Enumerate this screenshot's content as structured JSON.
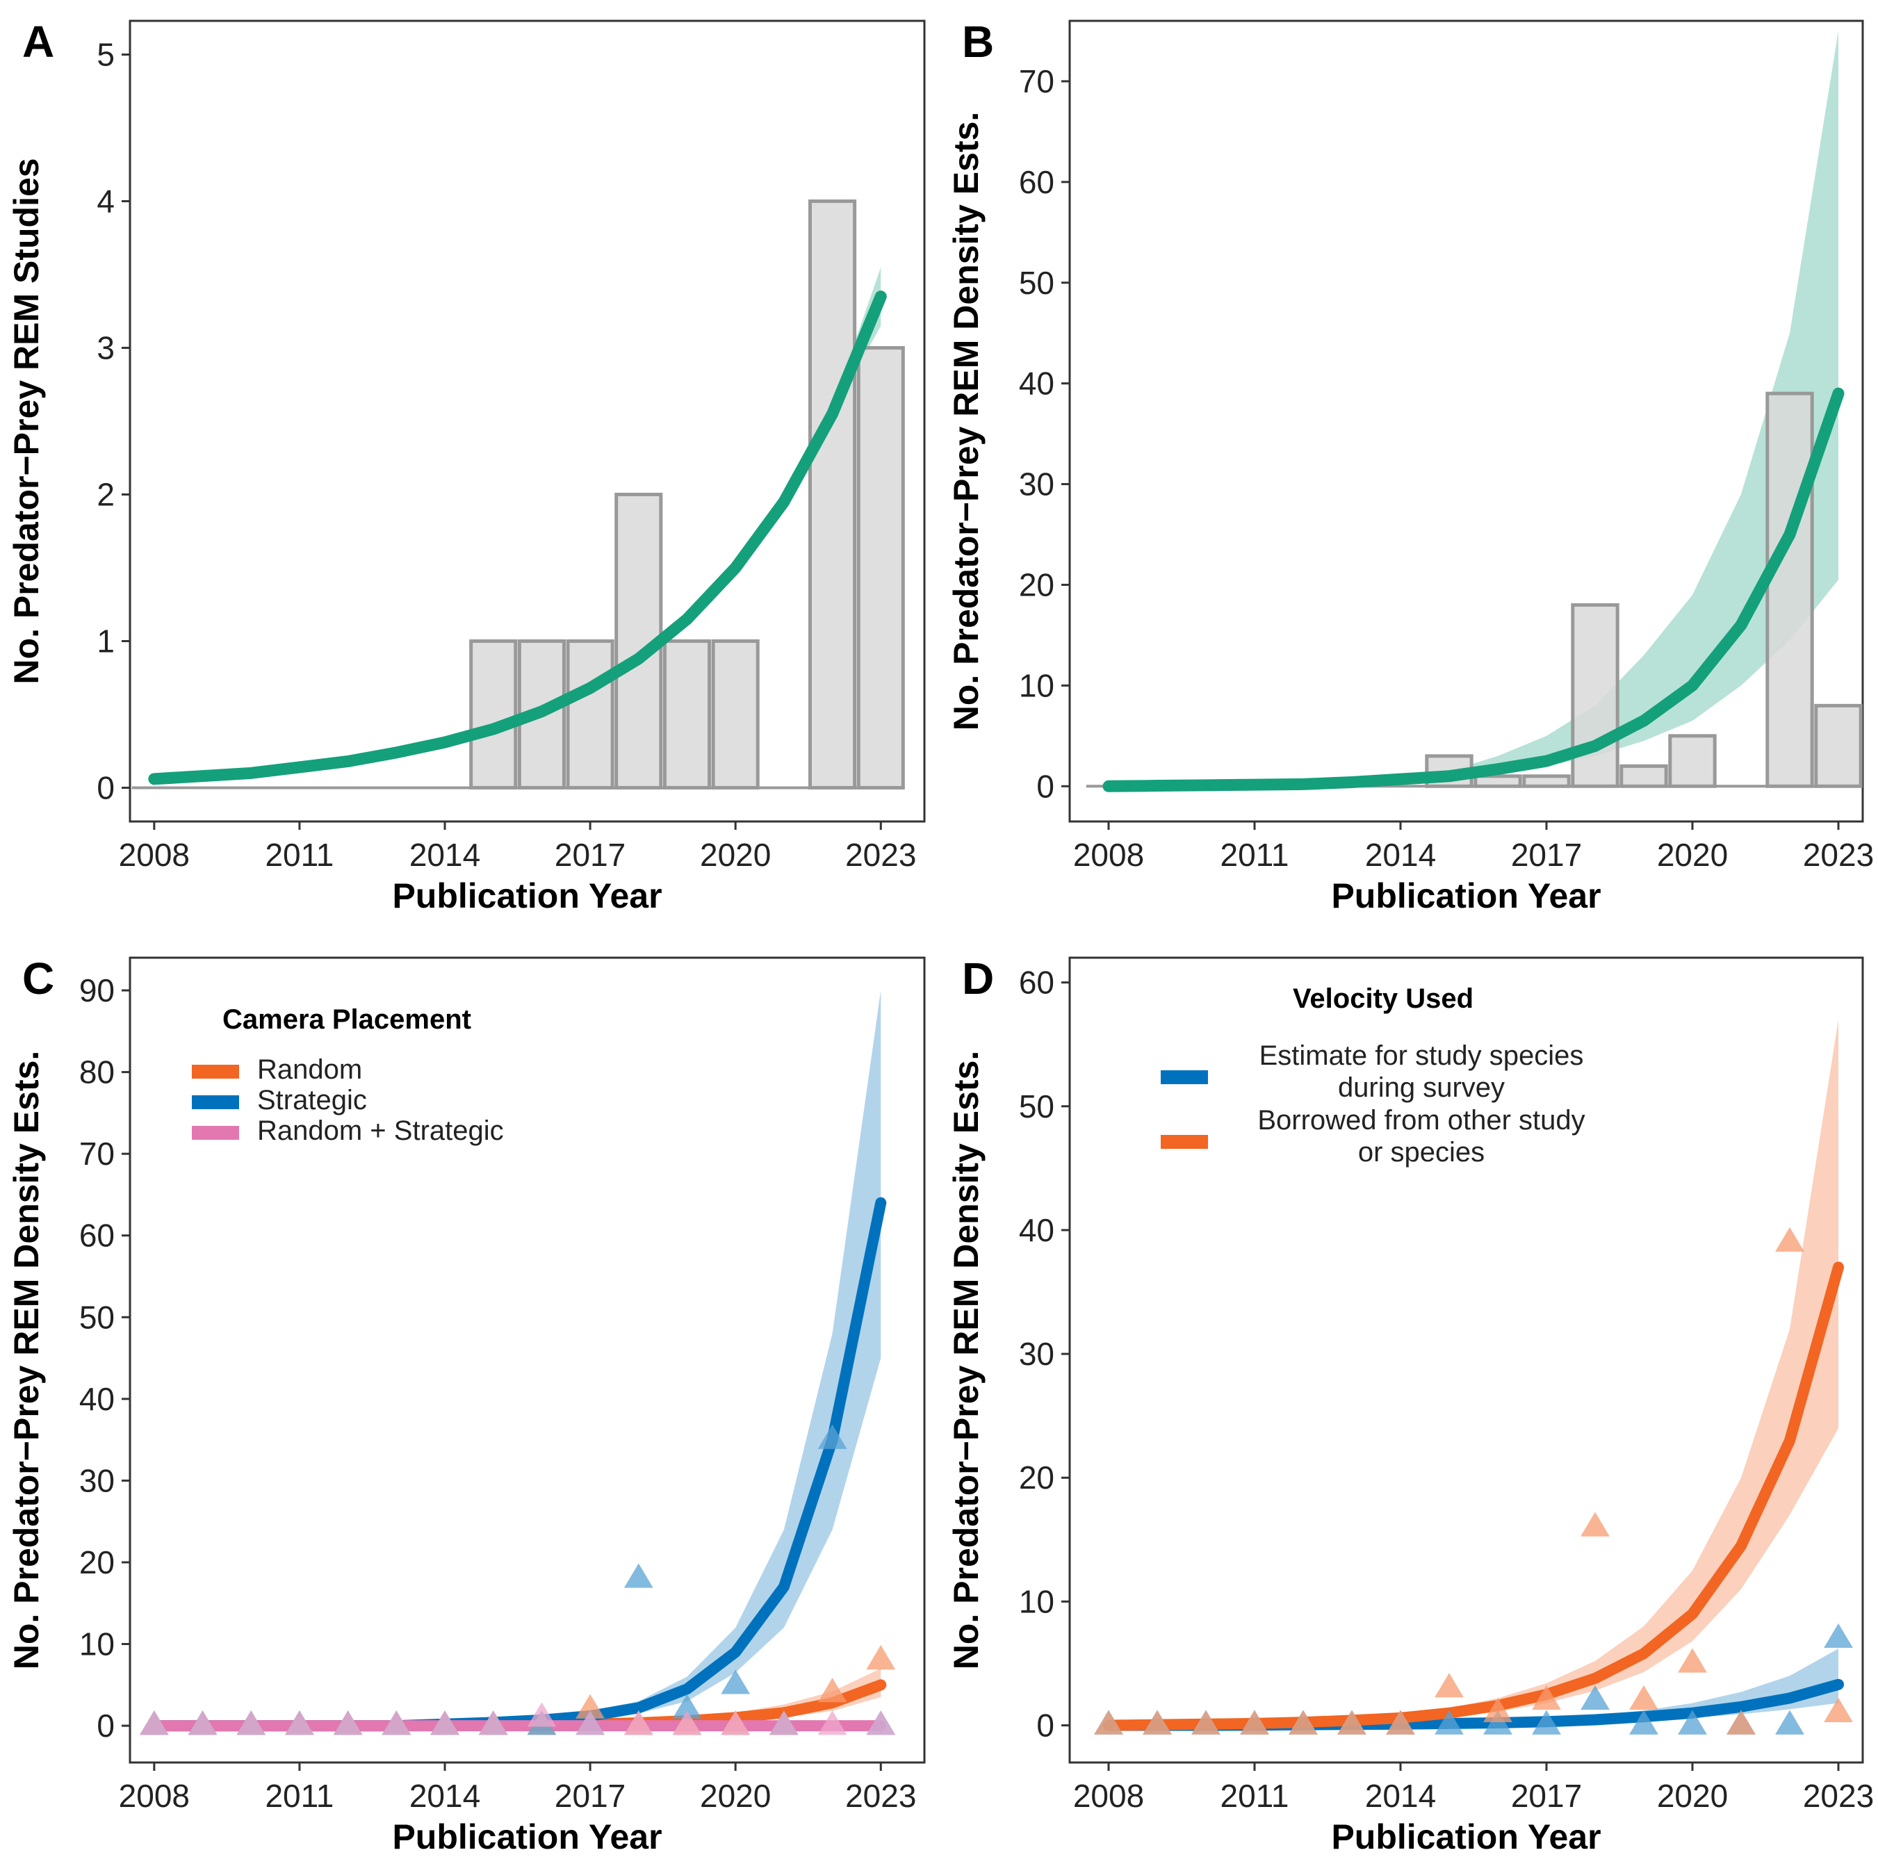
{
  "chart_data": [
    {
      "panel": "A",
      "type": "bar",
      "xlabel": "Publication Year",
      "ylabel": "No. Predator−Prey REM Studies",
      "xlim": [
        2007.5,
        2023.9
      ],
      "ylim": [
        -0.23,
        5.23
      ],
      "xticks": [
        2008,
        2011,
        2014,
        2017,
        2020,
        2023
      ],
      "yticks": [
        0,
        1,
        2,
        3,
        4,
        5
      ],
      "bars": {
        "x": [
          2008,
          2009,
          2010,
          2011,
          2012,
          2013,
          2014,
          2015,
          2016,
          2017,
          2018,
          2019,
          2020,
          2021,
          2022,
          2023
        ],
        "values": [
          0,
          0,
          0,
          0,
          0,
          0,
          0,
          1,
          1,
          1,
          2,
          1,
          1,
          0,
          4,
          3
        ]
      },
      "fit": {
        "color": "#14A07A",
        "x": [
          2008,
          2009,
          2010,
          2011,
          2012,
          2013,
          2014,
          2015,
          2016,
          2017,
          2018,
          2019,
          2020,
          2021,
          2022,
          2023
        ],
        "y": [
          0.06,
          0.08,
          0.1,
          0.14,
          0.18,
          0.24,
          0.31,
          0.4,
          0.52,
          0.68,
          0.88,
          1.15,
          1.5,
          1.95,
          2.55,
          3.35
        ],
        "lower": [
          0.06,
          0.08,
          0.1,
          0.14,
          0.18,
          0.24,
          0.31,
          0.4,
          0.52,
          0.68,
          0.88,
          1.15,
          1.5,
          1.95,
          2.55,
          3.15
        ],
        "upper": [
          0.06,
          0.08,
          0.1,
          0.14,
          0.18,
          0.24,
          0.31,
          0.4,
          0.52,
          0.68,
          0.88,
          1.15,
          1.5,
          1.95,
          2.6,
          3.55
        ]
      }
    },
    {
      "panel": "B",
      "type": "bar",
      "xlabel": "Publication Year",
      "ylabel": "No. Predator−Prey REM Density Ests.",
      "xlim": [
        2007.2,
        2023.5
      ],
      "ylim": [
        -3.5,
        76
      ],
      "xticks": [
        2008,
        2011,
        2014,
        2017,
        2020,
        2023
      ],
      "yticks": [
        0,
        10,
        20,
        30,
        40,
        50,
        60,
        70
      ],
      "bars": {
        "x": [
          2008,
          2009,
          2010,
          2011,
          2012,
          2013,
          2014,
          2015,
          2016,
          2017,
          2018,
          2019,
          2020,
          2021,
          2022,
          2023
        ],
        "values": [
          0,
          0,
          0,
          0,
          0,
          0,
          0,
          3,
          1,
          1,
          18,
          2,
          5,
          0,
          39,
          8
        ]
      },
      "fit": {
        "color": "#14A07A",
        "x": [
          2008,
          2009,
          2010,
          2011,
          2012,
          2013,
          2014,
          2015,
          2016,
          2017,
          2018,
          2019,
          2020,
          2021,
          2022,
          2023
        ],
        "y": [
          0,
          0.05,
          0.1,
          0.15,
          0.2,
          0.4,
          0.7,
          1.0,
          1.7,
          2.5,
          4.0,
          6.5,
          10.0,
          16.0,
          25.0,
          39.0
        ],
        "lower": [
          0,
          0.05,
          0.1,
          0.15,
          0.2,
          0.35,
          0.55,
          0.8,
          1.3,
          2.0,
          3.0,
          4.5,
          6.5,
          10.0,
          14.5,
          20.5
        ],
        "upper": [
          0,
          0.05,
          0.1,
          0.15,
          0.25,
          0.5,
          0.9,
          1.5,
          3.0,
          5.0,
          8.0,
          13.0,
          19.0,
          29.0,
          45.0,
          75.0
        ]
      }
    },
    {
      "panel": "C",
      "type": "line",
      "xlabel": "Publication Year",
      "ylabel": "No. Predator−Prey REM Density Ests.",
      "xlim": [
        2007.5,
        2023.9
      ],
      "ylim": [
        -4.5,
        94
      ],
      "xticks": [
        2008,
        2011,
        2014,
        2017,
        2020,
        2023
      ],
      "yticks": [
        0,
        10,
        20,
        30,
        40,
        50,
        60,
        70,
        80,
        90
      ],
      "legend": {
        "title": "Camera Placement",
        "position": "top-left",
        "entries": [
          "Random",
          "Strategic",
          "Random + Strategic"
        ]
      },
      "series": [
        {
          "name": "Random",
          "color": "#F26522",
          "x": [
            2008,
            2009,
            2010,
            2011,
            2012,
            2013,
            2014,
            2015,
            2016,
            2017,
            2018,
            2019,
            2020,
            2021,
            2022,
            2023
          ],
          "fit": [
            0,
            0,
            0,
            0,
            0,
            0,
            0,
            0.05,
            0.1,
            0.2,
            0.35,
            0.6,
            1.0,
            1.6,
            2.8,
            5.0
          ],
          "lower": [
            0,
            0,
            0,
            0,
            0,
            0,
            0,
            0.02,
            0.05,
            0.1,
            0.2,
            0.35,
            0.6,
            1.0,
            1.8,
            3.5
          ],
          "upper": [
            0,
            0,
            0,
            0,
            0,
            0,
            0,
            0.1,
            0.2,
            0.35,
            0.6,
            1.0,
            1.6,
            2.6,
            4.2,
            7.0
          ],
          "points": [
            0,
            0,
            0,
            0,
            0,
            0,
            0,
            0,
            0,
            2,
            0,
            0,
            0,
            0,
            4,
            8
          ]
        },
        {
          "name": "Strategic",
          "color": "#0072BD",
          "x": [
            2008,
            2009,
            2010,
            2011,
            2012,
            2013,
            2014,
            2015,
            2016,
            2017,
            2018,
            2019,
            2020,
            2021,
            2022,
            2023
          ],
          "fit": [
            0,
            0,
            0,
            0,
            0,
            0,
            0.2,
            0.4,
            0.7,
            1.2,
            2.2,
            4.5,
            9.0,
            17.0,
            35.0,
            64.0
          ],
          "lower": [
            0,
            0,
            0,
            0,
            0,
            0,
            0.1,
            0.2,
            0.4,
            0.8,
            1.5,
            3.0,
            6.5,
            12.0,
            24.0,
            45.0
          ],
          "upper": [
            0,
            0,
            0,
            0,
            0,
            0,
            0.3,
            0.6,
            1.0,
            1.8,
            3.0,
            6.0,
            12.0,
            24.0,
            48.0,
            90.0
          ],
          "points": [
            0,
            0,
            0,
            0,
            0,
            0,
            0,
            0,
            0,
            0,
            18,
            2,
            5,
            0,
            35,
            0
          ]
        },
        {
          "name": "Random + Strategic",
          "color": "#E377B0",
          "x": [
            2008,
            2009,
            2010,
            2011,
            2012,
            2013,
            2014,
            2015,
            2016,
            2017,
            2018,
            2019,
            2020,
            2021,
            2022,
            2023
          ],
          "fit": [
            0,
            0,
            0,
            0,
            0,
            0,
            0,
            0,
            0,
            0,
            0,
            0,
            0,
            0,
            0,
            0
          ],
          "lower": [
            0,
            0,
            0,
            0,
            0,
            0,
            0,
            0,
            0,
            0,
            0,
            0,
            0,
            0,
            0,
            0
          ],
          "upper": [
            0,
            0,
            0,
            0,
            0,
            0,
            0,
            0,
            0,
            0,
            0,
            0,
            0,
            0,
            0,
            0
          ],
          "points": [
            0,
            0,
            0,
            0,
            0,
            0,
            0,
            0,
            1,
            0,
            0,
            0,
            0,
            0,
            0,
            0
          ]
        }
      ]
    },
    {
      "panel": "D",
      "type": "line",
      "xlabel": "Publication Year",
      "ylabel": "No. Predator−Prey REM Density Ests.",
      "xlim": [
        2007.2,
        2023.5
      ],
      "ylim": [
        -3.0,
        62
      ],
      "xticks": [
        2008,
        2011,
        2014,
        2017,
        2020,
        2023
      ],
      "yticks": [
        0,
        10,
        20,
        30,
        40,
        50,
        60
      ],
      "legend": {
        "title": "Velocity Used",
        "position": "top-center",
        "entries": [
          [
            "Estimate for study species",
            "during survey"
          ],
          [
            "Borrowed from other study",
            "or species"
          ]
        ]
      },
      "series": [
        {
          "name": "Estimate for study species during survey",
          "color": "#0072BD",
          "x": [
            2008,
            2009,
            2010,
            2011,
            2012,
            2013,
            2014,
            2015,
            2016,
            2017,
            2018,
            2019,
            2020,
            2021,
            2022,
            2023
          ],
          "fit": [
            0,
            0,
            0,
            0.02,
            0.05,
            0.08,
            0.1,
            0.15,
            0.2,
            0.3,
            0.45,
            0.7,
            1.0,
            1.5,
            2.2,
            3.3
          ],
          "lower": [
            0,
            0,
            0,
            0.01,
            0.02,
            0.04,
            0.05,
            0.08,
            0.1,
            0.15,
            0.25,
            0.4,
            0.6,
            0.9,
            1.3,
            1.8
          ],
          "upper": [
            0,
            0,
            0,
            0.04,
            0.08,
            0.12,
            0.18,
            0.25,
            0.35,
            0.5,
            0.8,
            1.2,
            1.8,
            2.7,
            4.0,
            6.2
          ],
          "points": [
            0,
            0,
            0,
            0,
            0,
            0,
            0,
            0,
            0,
            0,
            2,
            0,
            0,
            0,
            0,
            7
          ]
        },
        {
          "name": "Borrowed from other study or species",
          "color": "#F26522",
          "x": [
            2008,
            2009,
            2010,
            2011,
            2012,
            2013,
            2014,
            2015,
            2016,
            2017,
            2018,
            2019,
            2020,
            2021,
            2022,
            2023
          ],
          "fit": [
            0,
            0.05,
            0.1,
            0.15,
            0.25,
            0.4,
            0.6,
            1.0,
            1.6,
            2.5,
            3.8,
            5.8,
            9.0,
            14.5,
            23.0,
            37.0
          ],
          "lower": [
            0,
            0.02,
            0.05,
            0.1,
            0.15,
            0.25,
            0.4,
            0.7,
            1.1,
            1.8,
            2.8,
            4.3,
            6.8,
            11.0,
            17.0,
            24.0
          ],
          "upper": [
            0,
            0.08,
            0.15,
            0.25,
            0.4,
            0.6,
            0.9,
            1.4,
            2.2,
            3.4,
            5.2,
            8.0,
            12.5,
            20.0,
            32.0,
            57.0
          ],
          "points": [
            0,
            0,
            0,
            0,
            0,
            0,
            0,
            3,
            1,
            2,
            16,
            2,
            5,
            0,
            39,
            1
          ]
        }
      ]
    }
  ]
}
